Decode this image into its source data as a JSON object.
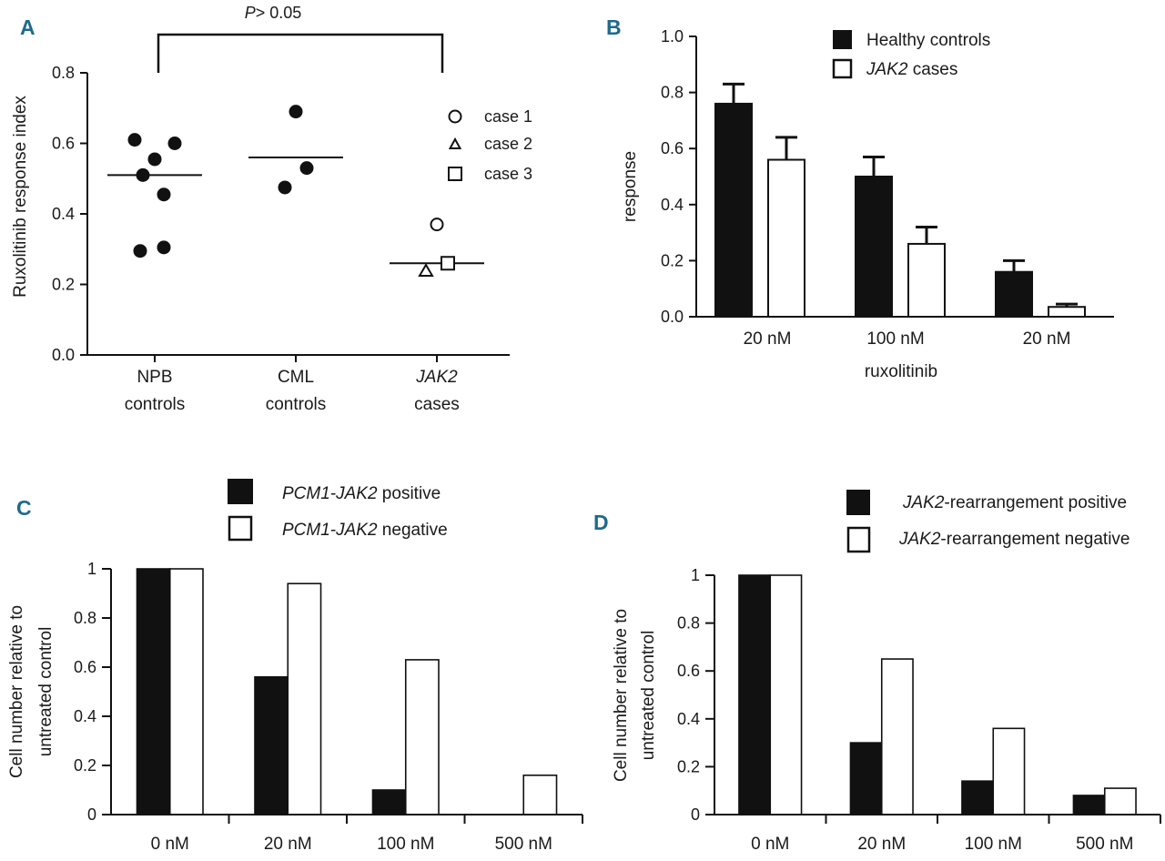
{
  "colors": {
    "panel_label": "#1f6a8c",
    "ink": "#111111",
    "open_fill": "#ffffff"
  },
  "chart_data": [
    {
      "panel": "A",
      "type": "scatter",
      "ylabel": "Ruxolitinib response index",
      "ylim": [
        0,
        0.8
      ],
      "yticks": [
        "0.0",
        "0.2",
        "0.4",
        "0.6",
        "0.8"
      ],
      "groups": [
        {
          "line1": "NPB",
          "line2": "controls",
          "italic": false,
          "points": [
            0.61,
            0.6,
            0.555,
            0.51,
            0.455,
            0.305,
            0.295
          ],
          "mean": 0.51
        },
        {
          "line1": "CML",
          "line2": "controls",
          "italic": false,
          "points": [
            0.69,
            0.53,
            0.475
          ],
          "mean": 0.56
        },
        {
          "line1": "JAK2",
          "line2": "cases",
          "italic": true,
          "points": [
            0.37,
            0.24,
            0.26
          ],
          "shapes": [
            "circle",
            "triangle",
            "square"
          ],
          "mean": 0.26
        }
      ],
      "annotation": {
        "italic_part": "P",
        "rest": "> 0.05"
      },
      "legend": [
        {
          "shape": "circle",
          "label": "case 1"
        },
        {
          "shape": "triangle",
          "label": "case 2"
        },
        {
          "shape": "square",
          "label": "case 3"
        }
      ]
    },
    {
      "panel": "B",
      "type": "bar",
      "ylabel": "response",
      "xlabel": "ruxolitinib",
      "ylim": [
        0,
        1.0
      ],
      "yticks": [
        "0.0",
        "0.2",
        "0.4",
        "0.6",
        "0.8",
        "1.0"
      ],
      "categories": [
        "20 nM",
        "100 nM",
        "20 nM"
      ],
      "series": [
        {
          "name": "Healthy controls",
          "italic_part": "",
          "fill": "black",
          "values": [
            0.76,
            0.5,
            0.16
          ],
          "errors": [
            0.07,
            0.07,
            0.04
          ]
        },
        {
          "name": " cases",
          "italic_part": "JAK2",
          "fill": "white",
          "values": [
            0.56,
            0.26,
            0.035
          ],
          "errors": [
            0.08,
            0.06,
            0.01
          ]
        }
      ]
    },
    {
      "panel": "C",
      "type": "bar",
      "ylabel_line1": "Cell number relative to",
      "ylabel_line2": "untreated control",
      "ylim": [
        0,
        1
      ],
      "yticks": [
        "0",
        "0.2",
        "0.4",
        "0.6",
        "0.8",
        "1"
      ],
      "categories": [
        "0 nM",
        "20 nM",
        "100 nM",
        "500 nM"
      ],
      "series": [
        {
          "name": " positive",
          "italic_part": "PCM1-JAK2",
          "fill": "black",
          "values": [
            1.0,
            0.56,
            0.1,
            0.0
          ]
        },
        {
          "name": " negative",
          "italic_part": "PCM1-JAK2",
          "fill": "white",
          "values": [
            1.0,
            0.94,
            0.63,
            0.16
          ]
        }
      ]
    },
    {
      "panel": "D",
      "type": "bar",
      "ylabel_line1": "Cell number relative to",
      "ylabel_line2": "untreated control",
      "ylim": [
        0,
        1
      ],
      "yticks": [
        "0",
        "0.2",
        "0.4",
        "0.6",
        "0.8",
        "1"
      ],
      "categories": [
        "0 nM",
        "20 nM",
        "100 nM",
        "500 nM"
      ],
      "series": [
        {
          "name": "-rearrangement positive",
          "italic_part": "JAK2",
          "fill": "black",
          "values": [
            1.0,
            0.3,
            0.14,
            0.08
          ]
        },
        {
          "name": "-rearrangement negative",
          "italic_part": "JAK2",
          "fill": "white",
          "values": [
            1.0,
            0.65,
            0.36,
            0.11
          ]
        }
      ]
    }
  ]
}
